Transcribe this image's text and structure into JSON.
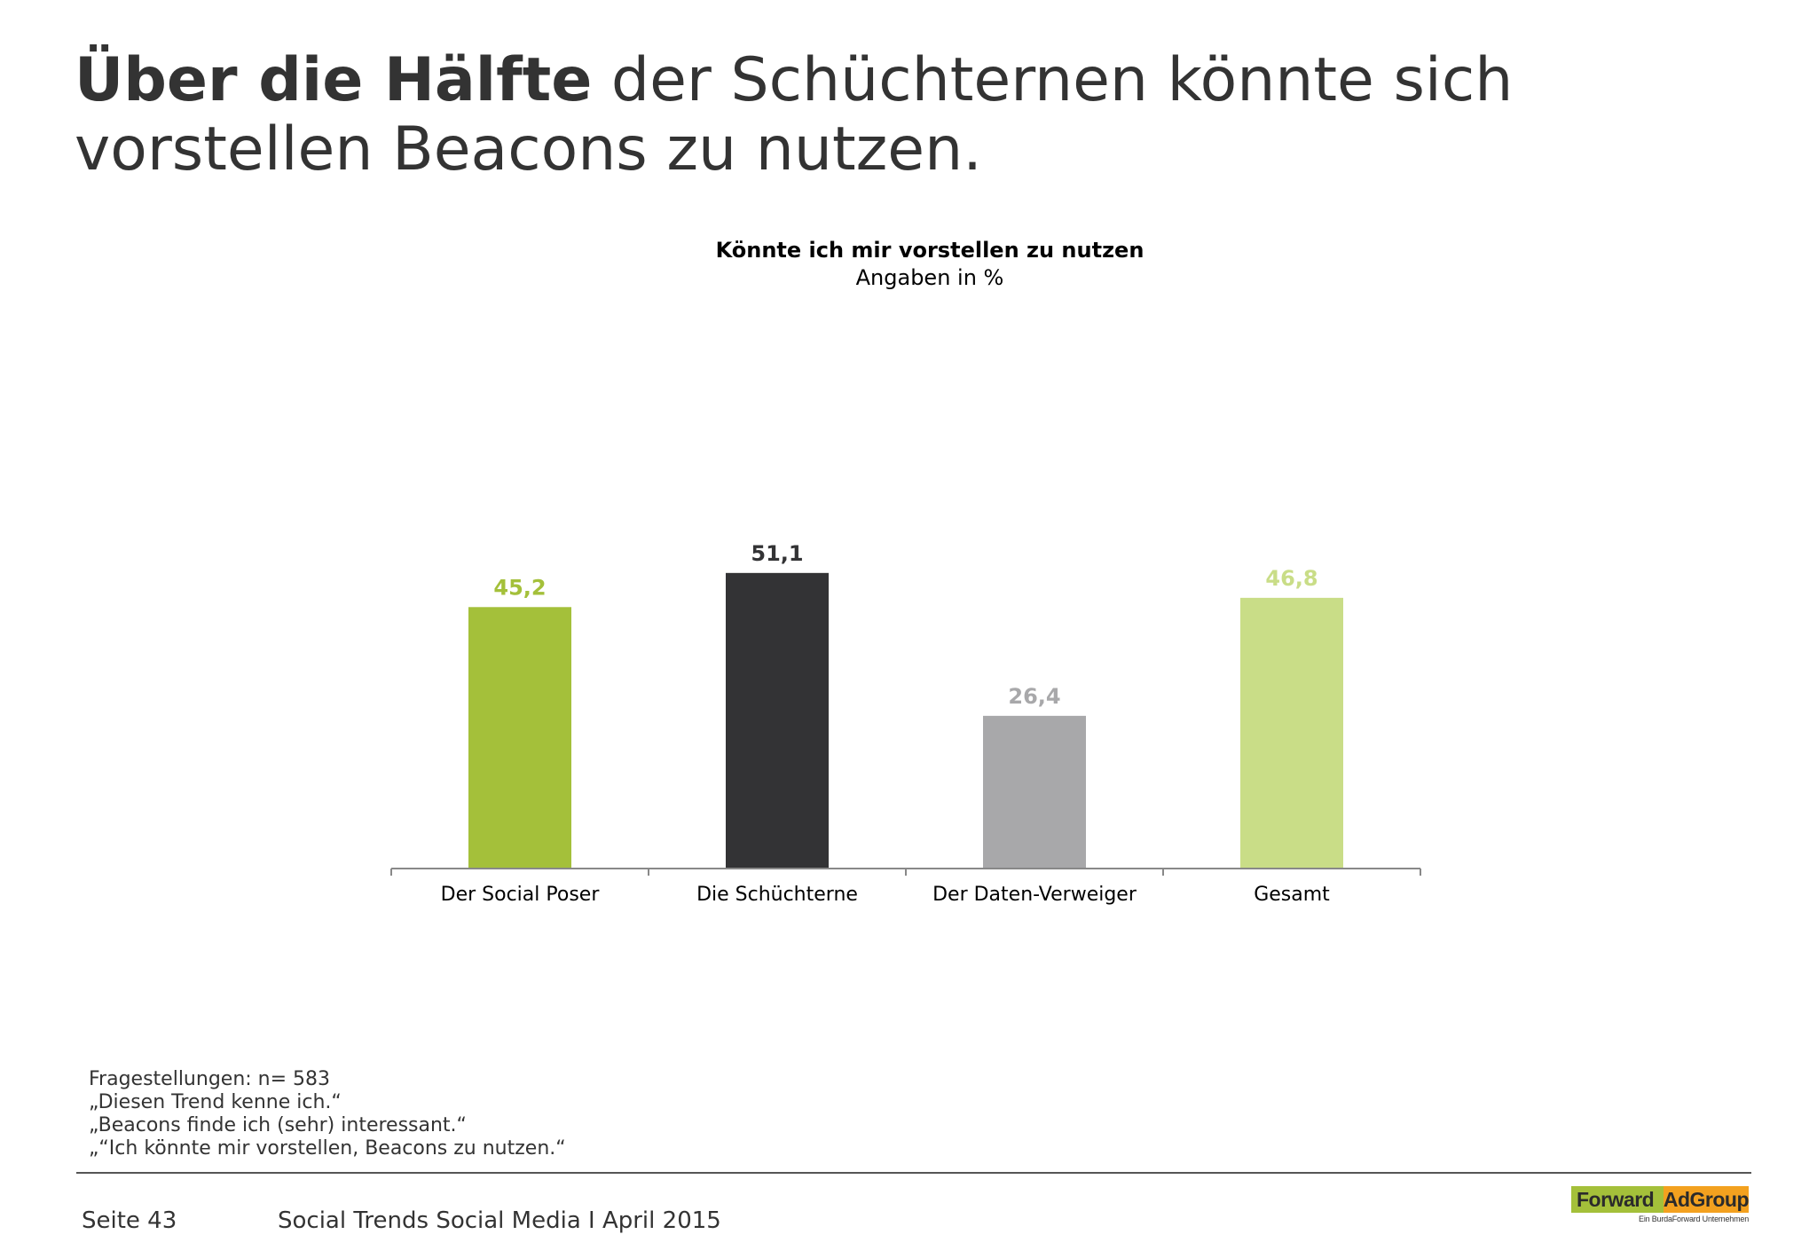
{
  "headline": {
    "bold": "Über die Hälfte",
    "rest": " der Schüchternen könnte sich vorstellen Beacons zu nutzen."
  },
  "chart_data": {
    "type": "bar",
    "title": "Könnte ich mir vorstellen zu nutzen",
    "subtitle": "Angaben in %",
    "categories": [
      "Der Social Poser",
      "Die Schüchterne",
      "Der Daten-Verweiger",
      "Gesamt"
    ],
    "values": [
      45.2,
      51.1,
      26.4,
      46.8
    ],
    "value_labels": [
      "45,2",
      "51,1",
      "26,4",
      "46,8"
    ],
    "bar_colors": [
      "#a4c03a",
      "#333335",
      "#a8a8aa",
      "#c9dd87"
    ],
    "ylim": [
      0,
      100
    ],
    "grid": false,
    "legend": "none"
  },
  "notes": [
    "Fragestellungen: n= 583",
    "„Diesen Trend kenne ich.“",
    "„Beacons finde ich (sehr) interessant.“",
    "„“Ich könnte mir vorstellen, Beacons zu nutzen.“"
  ],
  "footer": {
    "page": "Seite 43",
    "title": "Social Trends Social Media I April 2015"
  },
  "logo": {
    "name_part1": "Forward",
    "name_part2": "AdGroup",
    "tagline": "Ein BurdaForward Unternehmen"
  }
}
